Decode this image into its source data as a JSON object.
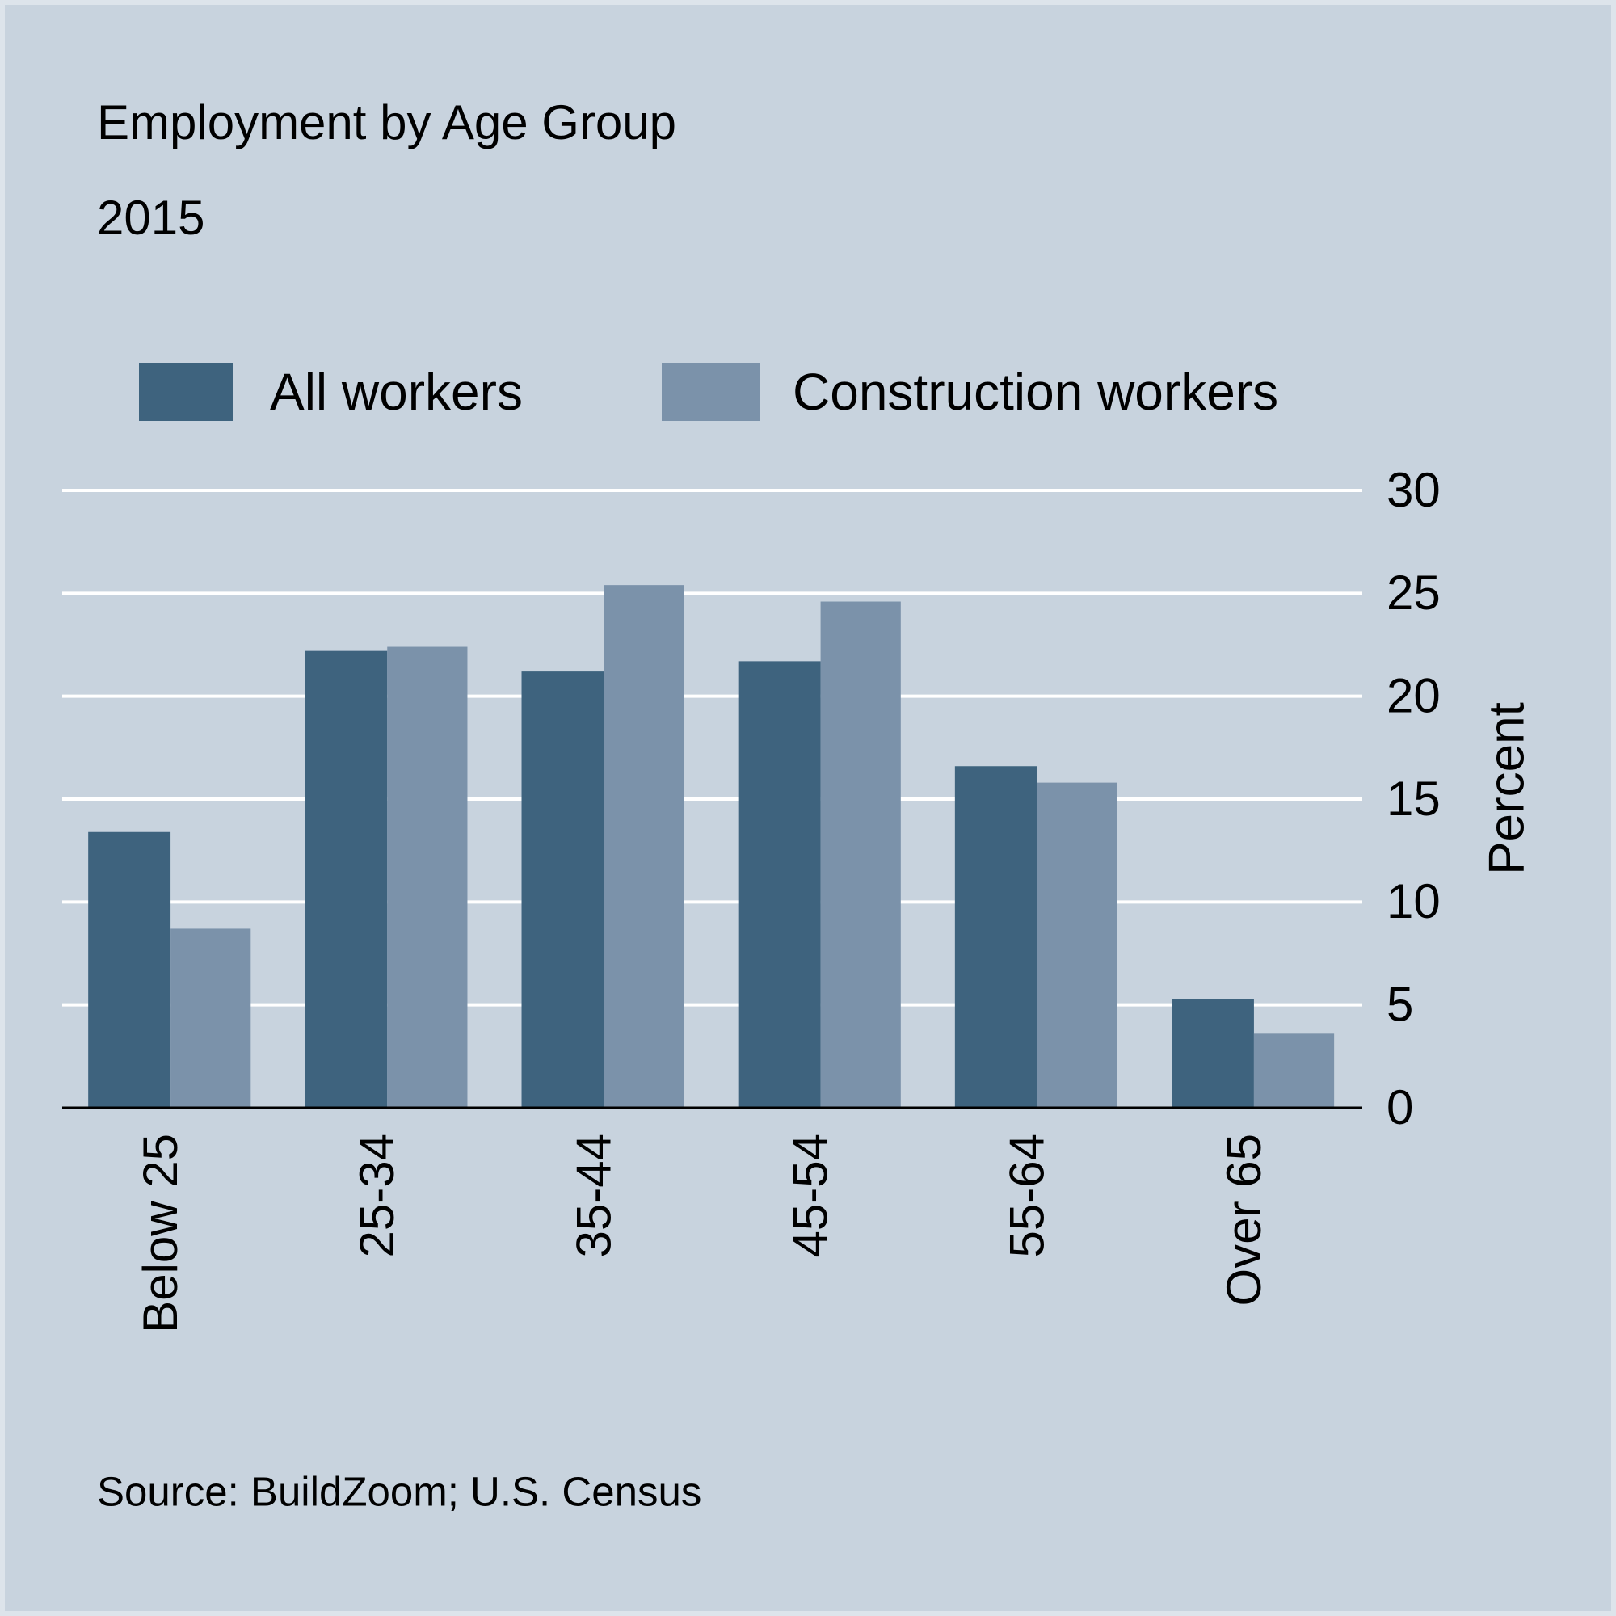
{
  "chart_data": {
    "type": "bar",
    "title": "Employment by Age Group",
    "subtitle": "2015",
    "categories": [
      "Below 25",
      "25-34",
      "35-44",
      "45-54",
      "55-64",
      "Over 65"
    ],
    "series": [
      {
        "name": "All workers",
        "color": "#3e637e",
        "values": [
          13.4,
          22.2,
          21.2,
          21.7,
          16.6,
          5.3
        ]
      },
      {
        "name": "Construction workers",
        "color": "#7b92aa",
        "values": [
          8.7,
          22.4,
          25.4,
          24.6,
          15.8,
          3.6
        ]
      }
    ],
    "y_label": "Percent",
    "ylim": [
      0,
      30
    ],
    "yticks": [
      0,
      5,
      10,
      15,
      20,
      25,
      30
    ],
    "grid": true,
    "source": "Source: BuildZoom; U.S. Census"
  }
}
